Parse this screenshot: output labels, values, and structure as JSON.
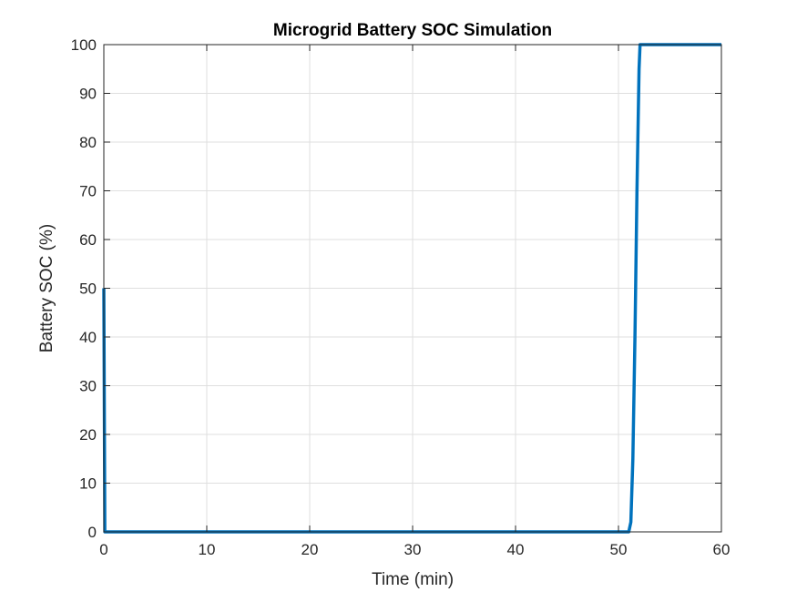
{
  "chart_data": {
    "type": "line",
    "title": "Microgrid Battery SOC Simulation",
    "xlabel": "Time (min)",
    "ylabel": "Battery SOC (%)",
    "xlim": [
      0,
      60
    ],
    "ylim": [
      0,
      100
    ],
    "xticks": [
      0,
      10,
      20,
      30,
      40,
      50,
      60
    ],
    "yticks": [
      0,
      10,
      20,
      30,
      40,
      50,
      60,
      70,
      80,
      90,
      100
    ],
    "grid": true,
    "legend": "none",
    "series": [
      {
        "color": "#0072BD",
        "x": [
          0,
          0.1,
          51.0,
          51.2,
          51.4,
          51.6,
          51.8,
          52.0,
          52.1,
          60
        ],
        "y": [
          50,
          0,
          0,
          2,
          15,
          40,
          70,
          95,
          100,
          100
        ]
      }
    ]
  }
}
